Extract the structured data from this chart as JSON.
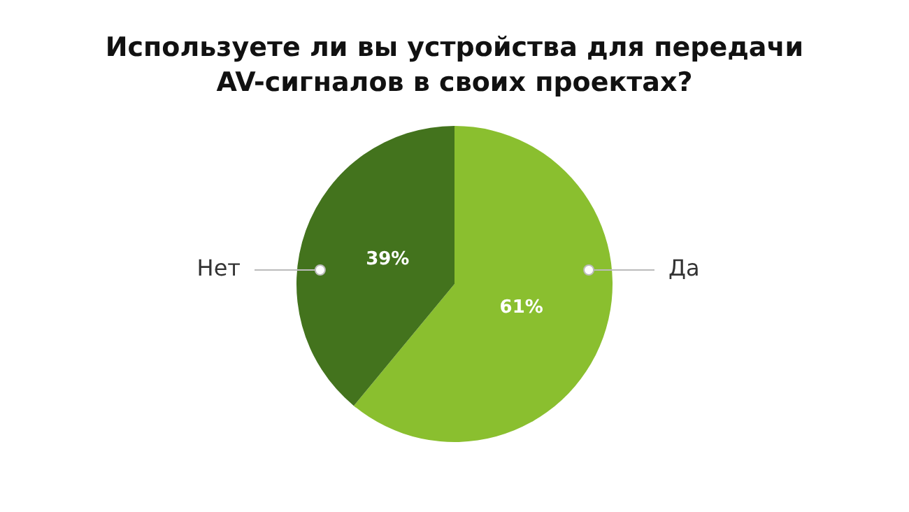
{
  "chart_data": {
    "type": "pie",
    "title": "Используете ли вы устройства для передачи AV-сигналов в своих проектах?",
    "categories": [
      "Да",
      "Нет"
    ],
    "values": [
      61,
      39
    ],
    "value_labels": [
      "61%",
      "39%"
    ],
    "colors": [
      "#8abf2f",
      "#43731d"
    ],
    "legend": false
  }
}
